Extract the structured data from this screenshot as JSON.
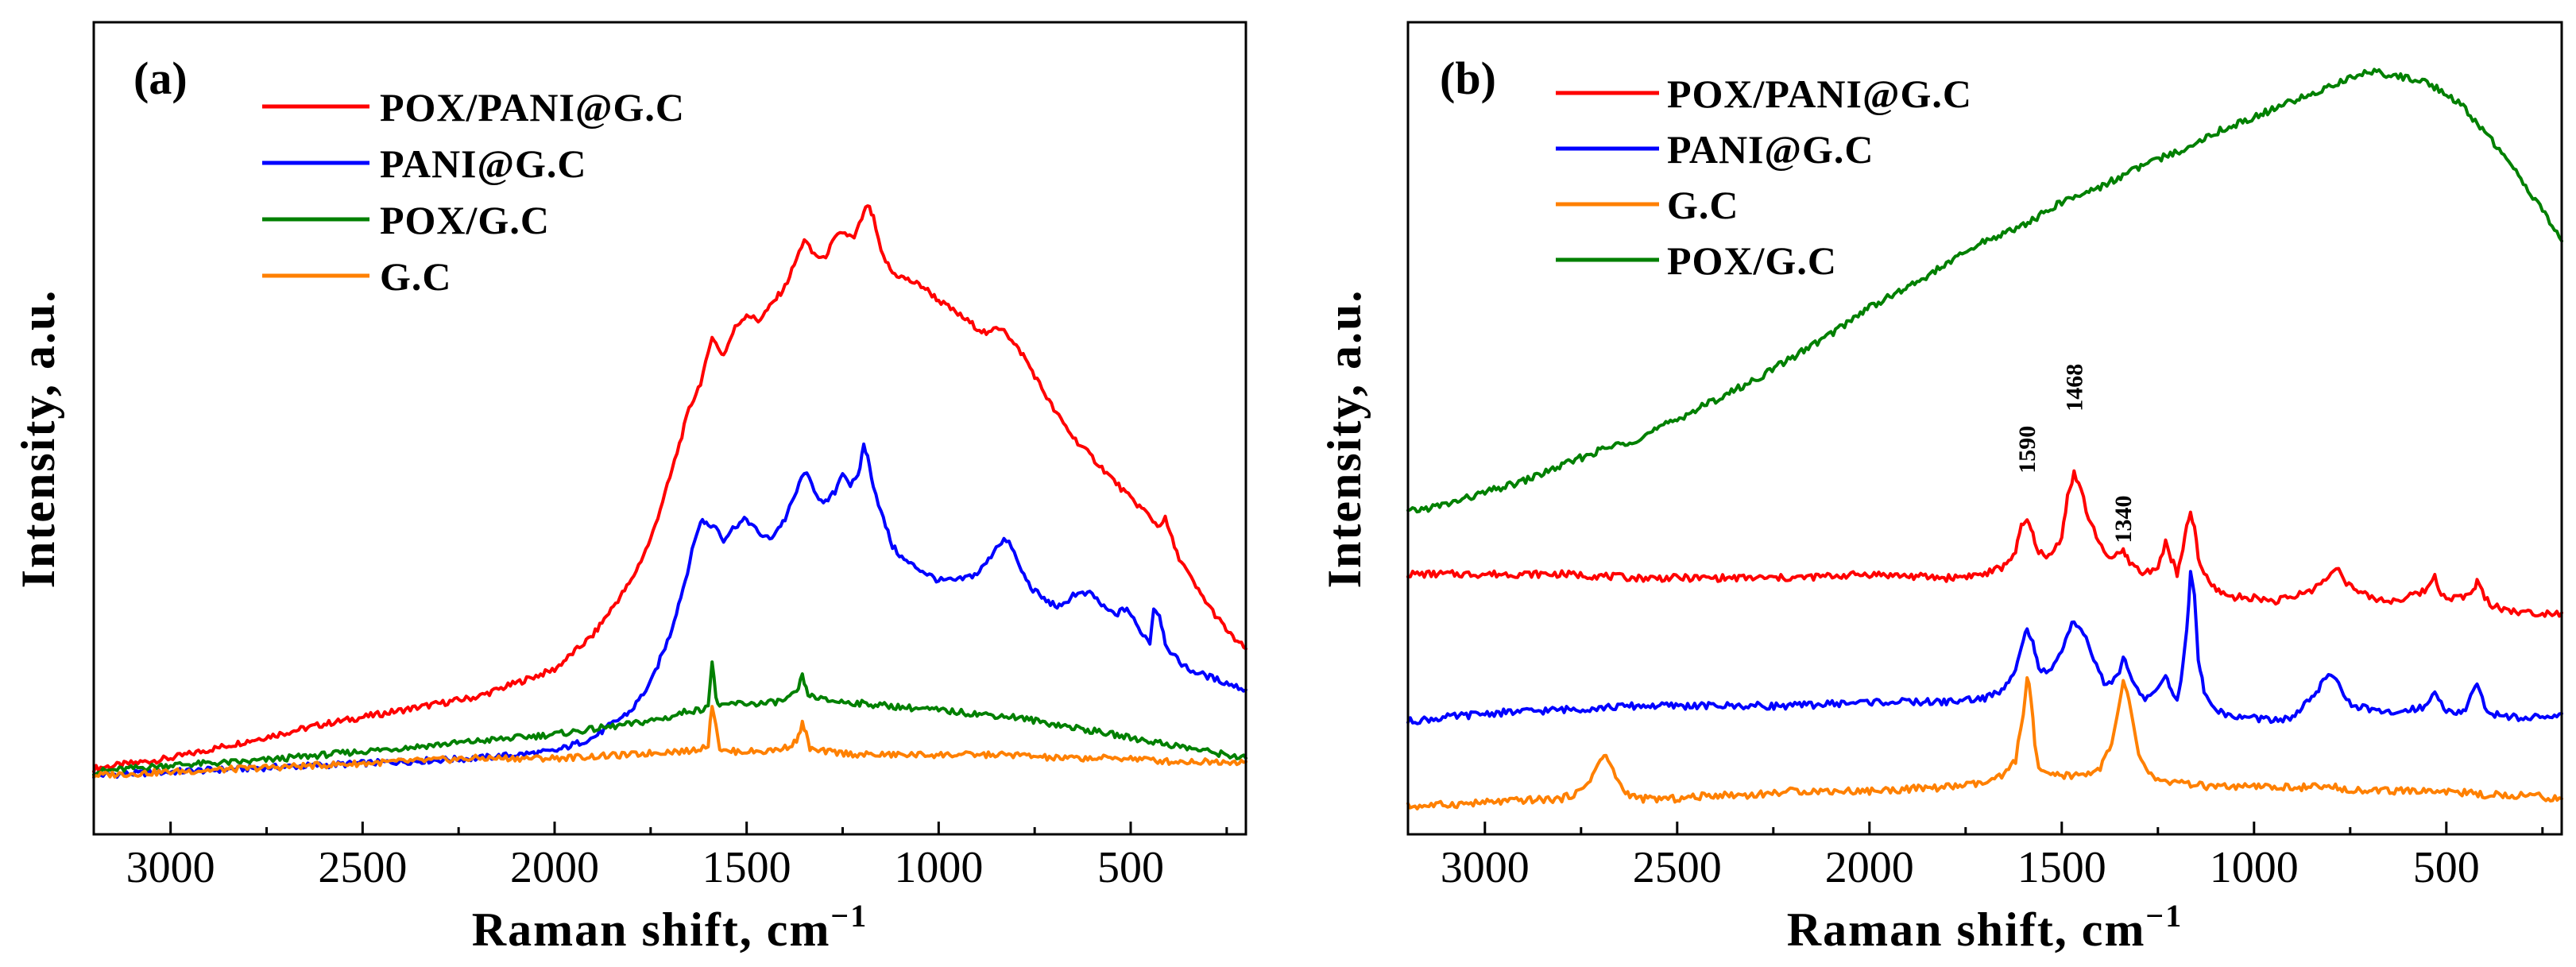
{
  "chart_data": [
    {
      "type": "line",
      "panel_label": "(a)",
      "xlabel": "Raman shift, cm",
      "xlabel_sup": "−1",
      "ylabel": "Intensity, a.u.",
      "xlim": [
        3200,
        200
      ],
      "ylim": [
        0,
        100
      ],
      "y_ticks_shown": false,
      "x_ticks": [
        3000,
        2500,
        2000,
        1500,
        1000,
        500
      ],
      "x_tick_labels": [
        "3000",
        "2500",
        "2000",
        "1500",
        "1000",
        "500"
      ],
      "legend": [
        "POX/PANI@G.C",
        "PANI@G.C",
        "POX/G.C",
        "G.C"
      ],
      "annotations": [],
      "series": [
        {
          "name": "POX/PANI@G.C",
          "color": "#ff0000",
          "x": [
            3200,
            3000,
            2800,
            2600,
            2400,
            2200,
            2000,
            1900,
            1800,
            1750,
            1700,
            1650,
            1620,
            1600,
            1590,
            1575,
            1560,
            1530,
            1500,
            1470,
            1440,
            1400,
            1370,
            1350,
            1330,
            1300,
            1270,
            1250,
            1220,
            1200,
            1185,
            1170,
            1150,
            1120,
            1080,
            1040,
            1000,
            950,
            900,
            870,
            850,
            830,
            810,
            780,
            750,
            700,
            650,
            600,
            550,
            500,
            460,
            430,
            410,
            380,
            330,
            280,
            240,
            200
          ],
          "y": [
            1.5,
            3,
            5.5,
            8,
            10,
            12,
            16,
            21,
            29,
            35,
            44,
            54,
            58,
            62,
            65,
            63,
            62,
            66,
            68,
            67,
            69,
            72,
            76,
            79,
            77,
            76,
            79,
            80,
            79,
            82,
            84,
            82,
            77,
            74,
            73,
            72,
            70,
            68,
            66,
            65,
            66,
            66,
            64,
            62,
            59,
            54,
            50,
            47,
            44,
            41,
            39,
            37,
            38,
            33,
            28,
            24,
            21,
            19
          ]
        },
        {
          "name": "PANI@G.C",
          "color": "#0000ff",
          "x": [
            3200,
            3000,
            2800,
            2600,
            2400,
            2200,
            2000,
            1900,
            1800,
            1750,
            1700,
            1660,
            1630,
            1615,
            1600,
            1580,
            1560,
            1530,
            1500,
            1470,
            1440,
            1400,
            1370,
            1350,
            1330,
            1300,
            1270,
            1250,
            1230,
            1210,
            1195,
            1185,
            1170,
            1150,
            1120,
            1090,
            1060,
            1000,
            950,
            900,
            870,
            850,
            830,
            810,
            790,
            760,
            720,
            680,
            650,
            600,
            570,
            540,
            510,
            480,
            450,
            440,
            425,
            410,
            390,
            350,
            300,
            250,
            200
          ],
          "y": [
            0.5,
            1,
            1.5,
            2,
            2.5,
            3,
            4,
            6,
            10,
            14,
            21,
            29,
            36,
            38,
            37,
            37,
            35,
            37,
            38,
            36,
            35,
            38,
            42,
            45,
            43,
            40,
            42,
            45,
            43,
            44,
            49,
            47,
            43,
            39,
            34,
            32,
            31,
            29,
            29,
            30,
            32,
            34,
            35,
            34,
            31,
            28,
            26,
            25,
            27,
            27,
            25,
            24,
            25,
            22,
            20,
            25,
            24,
            20,
            18,
            16,
            15,
            14,
            13
          ]
        },
        {
          "name": "POX/G.C",
          "color": "#008000",
          "x": [
            3200,
            3000,
            2800,
            2600,
            2400,
            2200,
            2000,
            1800,
            1700,
            1650,
            1620,
            1600,
            1590,
            1580,
            1570,
            1560,
            1540,
            1500,
            1450,
            1400,
            1370,
            1355,
            1345,
            1335,
            1320,
            1300,
            1200,
            1100,
            1000,
            900,
            800,
            700,
            600,
            500,
            400,
            300,
            200
          ],
          "y": [
            1,
            2,
            2.5,
            3.5,
            4.5,
            5.5,
            6.5,
            8,
            9,
            10,
            10,
            11,
            17,
            12,
            10.5,
            10.5,
            11,
            11,
            11,
            11.5,
            12.5,
            15,
            13,
            12,
            12,
            11.5,
            11,
            10.5,
            10,
            9.5,
            9,
            8,
            7,
            6,
            5,
            4,
            3
          ]
        },
        {
          "name": "G.C",
          "color": "#ff8000",
          "x": [
            3200,
            3000,
            2800,
            2600,
            2400,
            2200,
            2000,
            1800,
            1700,
            1650,
            1620,
            1600,
            1590,
            1580,
            1570,
            1560,
            1540,
            1500,
            1450,
            1400,
            1370,
            1355,
            1345,
            1335,
            1320,
            1300,
            1200,
            1100,
            1000,
            900,
            800,
            700,
            600,
            500,
            400,
            300,
            200
          ],
          "y": [
            0.5,
            1,
            1.5,
            2,
            2.5,
            3,
            3,
            3.5,
            4,
            4,
            4.5,
            5,
            11,
            8,
            4.5,
            4,
            4,
            4,
            4,
            4.5,
            5.5,
            8,
            6.5,
            4.5,
            4,
            4,
            3.5,
            3.5,
            3.5,
            3.5,
            3.5,
            3,
            3,
            3,
            2.5,
            2.5,
            2.5
          ]
        }
      ]
    },
    {
      "type": "line",
      "panel_label": "(b)",
      "xlabel": "Raman shift, cm",
      "xlabel_sup": "−1",
      "ylabel": "Intensity, a.u.",
      "xlim": [
        3200,
        200
      ],
      "ylim": [
        0,
        100
      ],
      "y_ticks_shown": false,
      "x_ticks": [
        3000,
        2500,
        2000,
        1500,
        1000,
        500
      ],
      "x_tick_labels": [
        "3000",
        "2500",
        "2000",
        "1500",
        "1000",
        "500"
      ],
      "legend": [
        "POX/PANI@G.C",
        "PANI@G.C",
        "G.C",
        "POX/G.C"
      ],
      "annotations": [
        {
          "text": "1590",
          "x": 1590,
          "y": 43
        },
        {
          "text": "1468",
          "x": 1468,
          "y": 51
        },
        {
          "text": "1340",
          "x": 1340,
          "y": 34
        }
      ],
      "series": [
        {
          "name": "POX/PANI@G.C",
          "color": "#ff0000",
          "x": [
            3200,
            3000,
            2800,
            2600,
            2400,
            2200,
            2000,
            1800,
            1700,
            1650,
            1620,
            1605,
            1590,
            1575,
            1560,
            1540,
            1520,
            1500,
            1485,
            1468,
            1450,
            1430,
            1410,
            1390,
            1370,
            1350,
            1340,
            1330,
            1310,
            1290,
            1270,
            1250,
            1230,
            1215,
            1200,
            1185,
            1175,
            1165,
            1155,
            1145,
            1130,
            1110,
            1080,
            1050,
            1000,
            950,
            900,
            850,
            820,
            800,
            780,
            760,
            740,
            700,
            650,
            600,
            550,
            530,
            520,
            500,
            480,
            450,
            430,
            420,
            400,
            380,
            350,
            300,
            250,
            200
          ],
          "y": [
            30,
            30,
            30,
            29.5,
            29.5,
            29.5,
            30,
            29.5,
            30,
            31,
            33,
            36,
            37,
            35,
            33,
            32,
            33,
            35,
            40,
            43,
            41,
            37,
            35,
            33,
            32,
            32.5,
            33,
            32,
            31,
            30,
            30.5,
            31,
            34,
            32,
            30,
            33,
            36,
            38,
            36,
            32,
            30,
            28.5,
            27.5,
            27,
            27,
            26.5,
            27,
            28,
            29,
            30,
            31,
            29,
            28,
            27,
            26.5,
            27,
            28,
            30,
            28,
            27,
            27,
            27,
            28,
            29,
            27,
            26,
            25.5,
            25,
            25,
            25
          ]
        },
        {
          "name": "PANI@G.C",
          "color": "#0000ff",
          "x": [
            3200,
            3000,
            2800,
            2600,
            2400,
            2200,
            2000,
            1800,
            1700,
            1650,
            1620,
            1605,
            1590,
            1575,
            1560,
            1540,
            1520,
            1500,
            1485,
            1468,
            1450,
            1430,
            1410,
            1390,
            1370,
            1350,
            1340,
            1330,
            1310,
            1290,
            1270,
            1250,
            1230,
            1215,
            1200,
            1185,
            1175,
            1165,
            1155,
            1145,
            1130,
            1110,
            1080,
            1050,
            1000,
            950,
            900,
            850,
            820,
            800,
            780,
            760,
            740,
            700,
            650,
            600,
            550,
            530,
            520,
            500,
            480,
            450,
            430,
            420,
            400,
            380,
            350,
            300,
            250,
            200
          ],
          "y": [
            11,
            12,
            12.5,
            13,
            13,
            13,
            13.5,
            13.5,
            14,
            15,
            18,
            21,
            23,
            21,
            18,
            17,
            18,
            20,
            22,
            24,
            23,
            21,
            18,
            16,
            16,
            17,
            19,
            18,
            16,
            14,
            14,
            15,
            17,
            15,
            14,
            18,
            23,
            30,
            27,
            19,
            15,
            13,
            12,
            11.5,
            11.5,
            11,
            11.5,
            14,
            16,
            17,
            16,
            14,
            13,
            12.5,
            12,
            12.5,
            13,
            15,
            14,
            12.5,
            12,
            12.5,
            15,
            15.5,
            13,
            12,
            11.5,
            11.5,
            11.5,
            12
          ]
        },
        {
          "name": "G.C",
          "color": "#ff8000",
          "x": [
            3200,
            3000,
            2900,
            2800,
            2750,
            2720,
            2700,
            2690,
            2680,
            2660,
            2640,
            2600,
            2500,
            2400,
            2300,
            2200,
            2000,
            1800,
            1700,
            1650,
            1620,
            1600,
            1590,
            1580,
            1570,
            1560,
            1540,
            1500,
            1450,
            1400,
            1370,
            1350,
            1340,
            1330,
            1320,
            1300,
            1280,
            1250,
            1200,
            1100,
            1000,
            900,
            800,
            700,
            600,
            500,
            400,
            300,
            200
          ],
          "y": [
            0,
            0.5,
            0.8,
            1,
            2,
            4,
            6,
            6.5,
            6,
            4,
            2,
            1,
            1,
            1.5,
            1.5,
            2,
            2,
            2.5,
            3,
            4,
            6,
            12,
            17,
            14,
            8,
            5,
            4,
            4,
            4,
            5,
            8,
            13,
            16,
            15,
            12,
            7,
            4.5,
            3.5,
            3,
            2.5,
            2.5,
            2.5,
            2.5,
            2,
            2,
            2,
            1.5,
            1.5,
            1
          ]
        },
        {
          "name": "POX/G.C",
          "color": "#008000",
          "x": [
            3200,
            3100,
            3000,
            2900,
            2800,
            2700,
            2600,
            2500,
            2400,
            2300,
            2200,
            2100,
            2000,
            1900,
            1800,
            1700,
            1600,
            1500,
            1400,
            1300,
            1200,
            1100,
            1000,
            900,
            800,
            750,
            700,
            650,
            600,
            550,
            500,
            450,
            400,
            350,
            300,
            250,
            200
          ],
          "y": [
            38,
            39,
            40.5,
            42,
            44,
            46,
            47.5,
            50,
            52.5,
            55,
            58,
            61,
            64.5,
            67,
            70,
            73,
            75,
            78,
            80,
            82.5,
            84.5,
            87,
            89,
            91,
            93,
            94,
            95,
            94.5,
            94,
            93.5,
            92,
            90,
            87,
            84,
            80.5,
            77,
            73
          ]
        }
      ]
    }
  ]
}
